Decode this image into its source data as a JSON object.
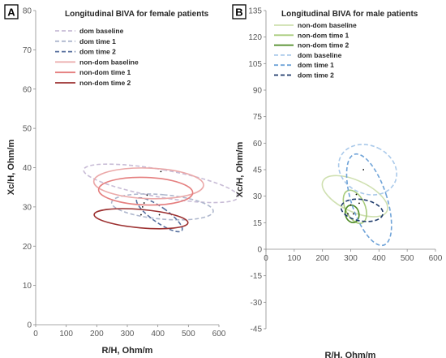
{
  "chart_data": [
    {
      "panel": "A",
      "type": "scatter",
      "title": "Longitudinal BIVA for female patients",
      "xlabel": "R/H, Ohm/m",
      "ylabel": "Xc/H, Ohm/m",
      "xlim": [
        0,
        600
      ],
      "ylim": [
        0,
        80
      ],
      "xticks": [
        0,
        100,
        200,
        300,
        400,
        500,
        600
      ],
      "yticks": [
        0,
        10,
        20,
        30,
        40,
        50,
        60,
        70,
        80
      ],
      "grid": false,
      "legend_position": "top-left",
      "series": [
        {
          "name": "dom baseline",
          "color": "#c8bcd6",
          "dash": "dashed",
          "center": [
            410,
            36
          ],
          "ellipses": [
            {
              "rx": 45,
              "ry": 20,
              "rot": 80
            }
          ]
        },
        {
          "name": "dom time 1",
          "color": "#aeb7cd",
          "dash": "dashed",
          "center": [
            415,
            30
          ],
          "ellipses": [
            {
              "rx": 40,
              "ry": 13,
              "rot": 85
            }
          ]
        },
        {
          "name": "dom time 2",
          "color": "#566f9e",
          "dash": "dashed",
          "center": [
            405,
            28
          ],
          "ellipses": [
            {
              "rx": 25,
              "ry": 7,
              "rot": 55
            }
          ]
        },
        {
          "name": "non-dom baseline",
          "color": "#eba9a9",
          "dash": "solid",
          "center": [
            370,
            36
          ],
          "ellipses": [
            {
              "rx": 50,
              "ry": 14,
              "rot": 88
            }
          ]
        },
        {
          "name": "non-dom time 1",
          "color": "#e57f7f",
          "dash": "solid",
          "center": [
            360,
            34
          ],
          "ellipses": [
            {
              "rx": 45,
              "ry": 12,
              "rot": 88
            }
          ]
        },
        {
          "name": "non-dom time 2",
          "color": "#9c3030",
          "dash": "solid",
          "center": [
            345,
            27
          ],
          "ellipses": [
            {
              "rx": 30,
              "ry": 12,
              "rot": 85
            }
          ]
        }
      ],
      "center_points": [
        [
          410,
          39
        ],
        [
          365,
          33
        ],
        [
          355,
          31
        ],
        [
          350,
          30
        ],
        [
          405,
          28
        ],
        [
          345,
          28
        ]
      ]
    },
    {
      "panel": "B",
      "type": "scatter",
      "title": "Longitudinal BIVA for male patients",
      "xlabel": "R/H, Ohm/m",
      "ylabel": "Xc/H, Ohm/m",
      "xlim": [
        0,
        600
      ],
      "ylim": [
        -45,
        135
      ],
      "xticks": [
        0,
        100,
        200,
        300,
        400,
        500,
        600
      ],
      "yticks": [
        -45,
        -30,
        -15,
        0,
        15,
        30,
        45,
        60,
        75,
        90,
        105,
        120,
        135
      ],
      "grid": false,
      "legend_position": "top-left",
      "series": [
        {
          "name": "non-dom baseline",
          "color": "#cfe0b0",
          "dash": "solid",
          "center": [
            315,
            30
          ],
          "ellipses": [
            {
              "rx": 55,
              "ry": 20,
              "rot": 65
            }
          ]
        },
        {
          "name": "non-dom time 1",
          "color": "#a9cc7d",
          "dash": "solid",
          "center": [
            315,
            24
          ],
          "ellipses": [
            {
              "rx": 35,
              "ry": 10,
              "rot": 25
            }
          ]
        },
        {
          "name": "non-dom time 2",
          "color": "#4e8a24",
          "dash": "solid",
          "center": [
            305,
            20
          ],
          "ellipses": [
            {
              "rx": 24,
              "ry": 5,
              "rot": 15
            }
          ]
        },
        {
          "name": "dom baseline",
          "color": "#a9c9ea",
          "dash": "dashed",
          "center": [
            360,
            45
          ],
          "ellipses": [
            {
              "rx": 85,
              "ry": 17,
              "rot": 65
            }
          ]
        },
        {
          "name": "dom time 1",
          "color": "#6fa3d8",
          "dash": "dashed",
          "center": [
            365,
            28
          ],
          "ellipses": [
            {
              "rx": 63,
              "ry": 27,
              "rot": 18
            }
          ]
        },
        {
          "name": "dom time 2",
          "color": "#1e3a6b",
          "dash": "dashed",
          "center": [
            340,
            22
          ],
          "ellipses": [
            {
              "rx": 38,
              "ry": 12,
              "rot": 80
            }
          ]
        }
      ],
      "center_points": [
        [
          345,
          45
        ],
        [
          320,
          31
        ],
        [
          330,
          26
        ],
        [
          300,
          25
        ],
        [
          290,
          20
        ],
        [
          310,
          20
        ]
      ]
    }
  ]
}
